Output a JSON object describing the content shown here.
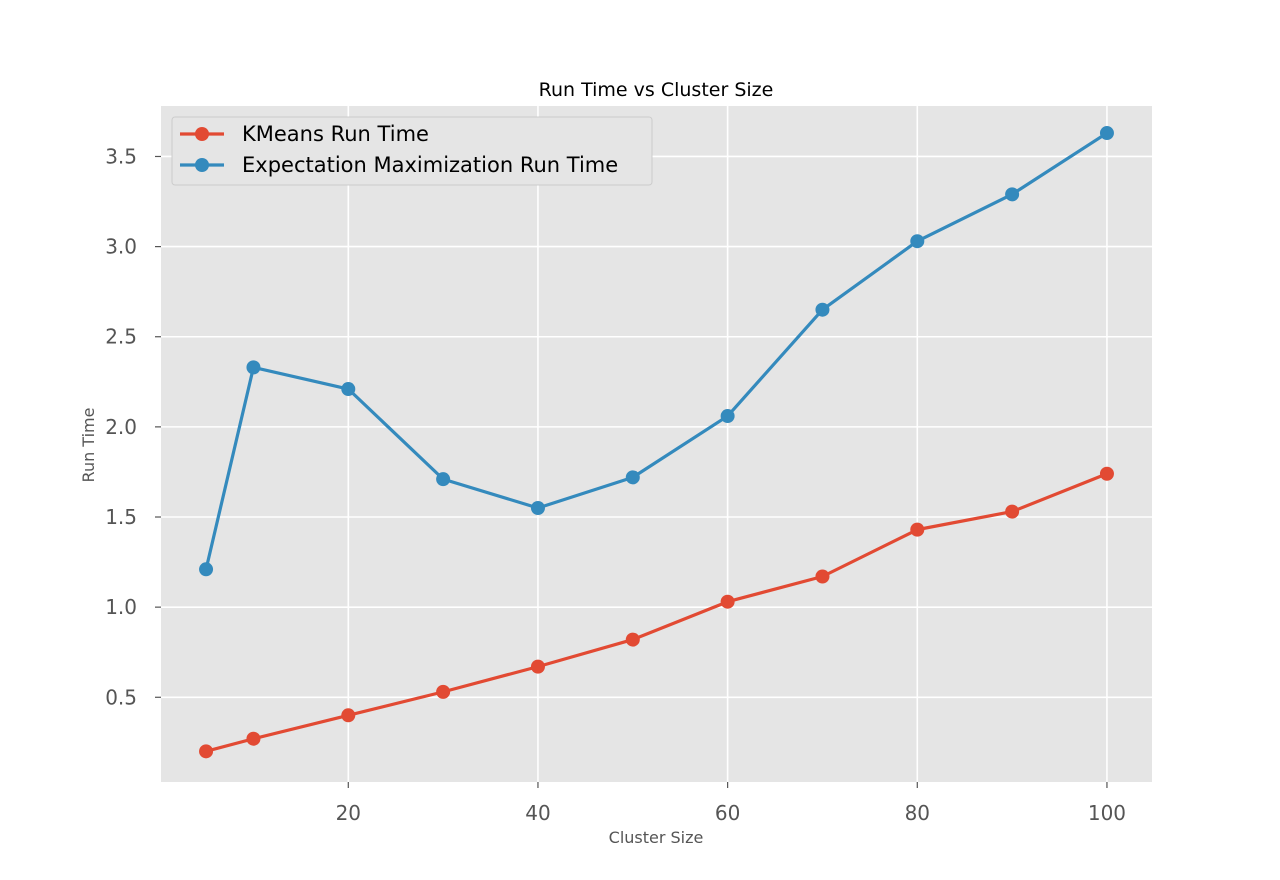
{
  "chart_data": {
    "type": "line",
    "title": "Run Time vs Cluster Size",
    "xlabel": "Cluster Size",
    "ylabel": "Run Time",
    "xlim": [
      0.25,
      104.75
    ],
    "ylim": [
      0.03,
      3.78
    ],
    "xticks": [
      20,
      40,
      60,
      80,
      100
    ],
    "yticks": [
      0.5,
      1.0,
      1.5,
      2.0,
      2.5,
      3.0,
      3.5
    ],
    "ytick_labels": [
      "0.5",
      "1.0",
      "1.5",
      "2.0",
      "2.5",
      "3.0",
      "3.5"
    ],
    "grid": true,
    "legend_position": "top-left",
    "x": [
      5,
      10,
      20,
      30,
      40,
      50,
      60,
      70,
      80,
      90,
      100
    ],
    "series": [
      {
        "name": "KMeans Run Time",
        "color": "#E24A33",
        "values": [
          0.2,
          0.27,
          0.4,
          0.53,
          0.67,
          0.82,
          1.03,
          1.17,
          1.43,
          1.53,
          1.74
        ]
      },
      {
        "name": "Expectation Maximization Run Time",
        "color": "#348ABD",
        "values": [
          1.21,
          2.33,
          2.21,
          1.71,
          1.55,
          1.72,
          2.06,
          2.65,
          3.03,
          3.29,
          3.63
        ]
      }
    ]
  }
}
